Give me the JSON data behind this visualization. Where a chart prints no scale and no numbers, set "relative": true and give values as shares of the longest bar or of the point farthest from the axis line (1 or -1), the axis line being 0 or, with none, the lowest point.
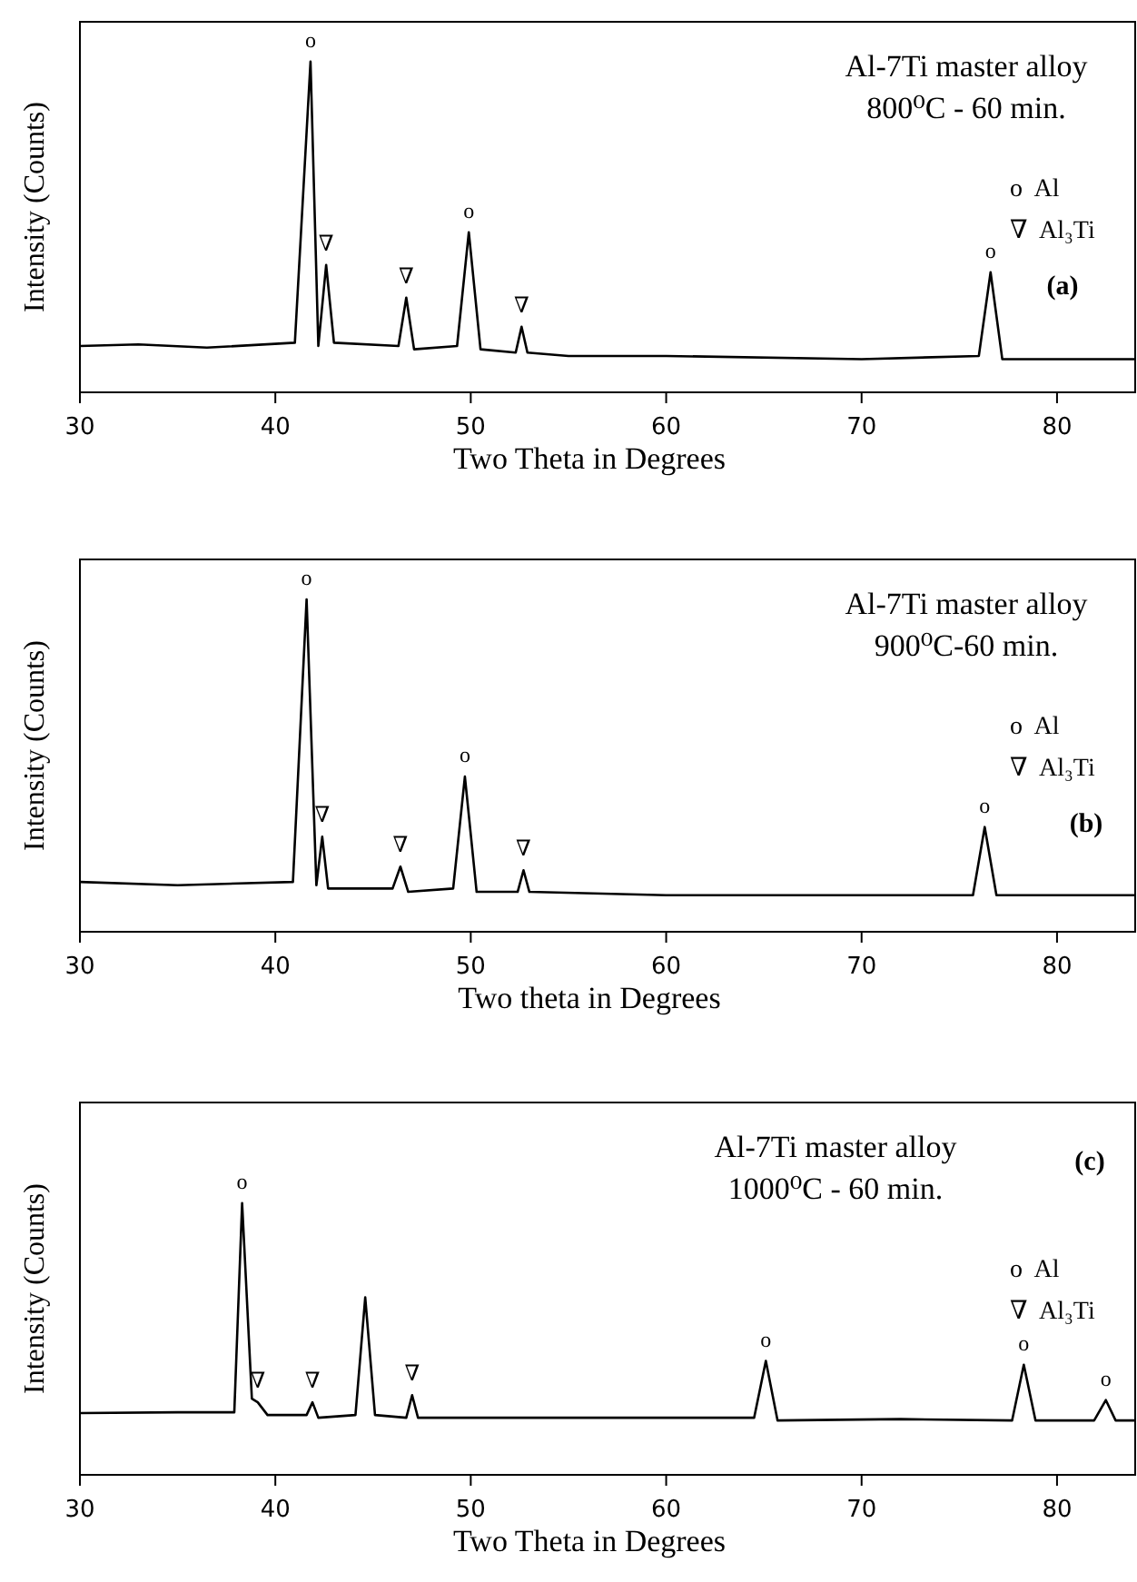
{
  "chart_data": [
    {
      "type": "line",
      "relative": true,
      "title": "Al-7Ti master alloy",
      "subtitle": "800⁰C - 60 min.",
      "xlabel": "Two Theta in Degrees",
      "ylabel": "Intensity (Counts)",
      "xlim": [
        30,
        84
      ],
      "xticks": [
        30,
        40,
        50,
        60,
        70,
        80
      ],
      "tick_labels": "x",
      "marker": "none",
      "line_style": "solid",
      "series": [
        {
          "color": "#000000",
          "x": [
            30,
            33,
            36.5,
            41.0,
            41.8,
            42.2,
            42.6,
            43.0,
            46.3,
            46.7,
            47.1,
            49.3,
            49.9,
            50.5,
            52.3,
            52.6,
            52.9,
            55,
            60,
            70,
            76.0,
            76.6,
            77.2,
            84
          ],
          "values": [
            0.14,
            0.145,
            0.135,
            0.15,
            1,
            0.14,
            0.385,
            0.15,
            0.14,
            0.286,
            0.13,
            0.14,
            0.484,
            0.13,
            0.12,
            0.198,
            0.12,
            0.11,
            0.11,
            0.1,
            0.11,
            0.363,
            0.1,
            0.1
          ]
        }
      ],
      "annotations": [
        "o  Al",
        "∇  Al₃Ti",
        "(a)",
        {
          "text": "o",
          "x": 41.8,
          "y": 1
        },
        {
          "text": "∇",
          "x": 42.6,
          "y": 0.385
        },
        {
          "text": "∇",
          "x": 46.7,
          "y": 0.286
        },
        {
          "text": "o",
          "x": 49.9,
          "y": 0.484
        },
        {
          "text": "∇",
          "x": 52.6,
          "y": 0.198
        },
        {
          "text": "o",
          "x": 76.6,
          "y": 0.363
        }
      ]
    },
    {
      "type": "line",
      "relative": true,
      "title": "Al-7Ti master alloy",
      "subtitle": "900⁰C-60 min.",
      "xlabel": "Two theta in Degrees",
      "ylabel": "Intensity (Counts)",
      "xlim": [
        30,
        84
      ],
      "xticks": [
        30,
        40,
        50,
        60,
        70,
        80
      ],
      "tick_labels": "x",
      "marker": "none",
      "line_style": "solid",
      "series": [
        {
          "color": "#000000",
          "x": [
            30,
            35,
            40.9,
            41.6,
            42.1,
            42.4,
            42.7,
            46.0,
            46.4,
            46.8,
            49.1,
            49.7,
            50.3,
            52.4,
            52.7,
            53.0,
            60,
            70,
            75.7,
            76.3,
            76.9,
            84
          ],
          "values": [
            0.15,
            0.14,
            0.15,
            1,
            0.14,
            0.286,
            0.13,
            0.13,
            0.196,
            0.12,
            0.13,
            0.467,
            0.12,
            0.12,
            0.185,
            0.12,
            0.11,
            0.11,
            0.11,
            0.315,
            0.11,
            0.11
          ]
        }
      ],
      "annotations": [
        "o  Al",
        "∇  Al₃Ti",
        "(b)",
        {
          "text": "o",
          "x": 41.6,
          "y": 1
        },
        {
          "text": "∇",
          "x": 42.4,
          "y": 0.286
        },
        {
          "text": "∇",
          "x": 46.4,
          "y": 0.196
        },
        {
          "text": "o",
          "x": 49.7,
          "y": 0.467
        },
        {
          "text": "∇",
          "x": 52.7,
          "y": 0.185
        },
        {
          "text": "o",
          "x": 76.3,
          "y": 0.315
        }
      ]
    },
    {
      "type": "line",
      "relative": true,
      "title": "Al-7Ti master alloy",
      "subtitle": "1000⁰C - 60 min.",
      "xlabel": "Two Theta in Degrees",
      "ylabel": "Intensity (Counts)",
      "xlim": [
        30,
        84
      ],
      "xticks": [
        30,
        40,
        50,
        60,
        70,
        80
      ],
      "tick_labels": "x",
      "marker": "none",
      "line_style": "solid",
      "series": [
        {
          "color": "#000000",
          "x": [
            30,
            35,
            37.9,
            38.3,
            38.8,
            39.1,
            39.6,
            41.6,
            41.9,
            42.2,
            44.1,
            44.6,
            45.1,
            46.7,
            47.0,
            47.3,
            55,
            64.5,
            65.1,
            65.7,
            72,
            77.7,
            78.3,
            78.9,
            81.9,
            82.5,
            83.0,
            84
          ],
          "values": [
            0.227,
            0.23,
            0.23,
            1,
            0.28,
            0.267,
            0.22,
            0.22,
            0.267,
            0.21,
            0.22,
            0.653,
            0.22,
            0.21,
            0.293,
            0.21,
            0.21,
            0.21,
            0.419,
            0.2,
            0.205,
            0.2,
            0.405,
            0.2,
            0.2,
            0.275,
            0.2,
            0.2
          ]
        }
      ],
      "annotations": [
        "o  Al",
        "∇  Al₃Ti",
        "(c)",
        {
          "text": "o",
          "x": 38.3,
          "y": 1
        },
        {
          "text": "∇",
          "x": 39.1,
          "y": 0.267
        },
        {
          "text": "∇",
          "x": 41.9,
          "y": 0.267
        },
        {
          "text": "∇",
          "x": 47.0,
          "y": 0.293
        },
        {
          "text": "o",
          "x": 65.1,
          "y": 0.419
        },
        {
          "text": "o",
          "x": 78.3,
          "y": 0.405
        },
        {
          "text": "o",
          "x": 82.5,
          "y": 0.275
        }
      ]
    }
  ]
}
